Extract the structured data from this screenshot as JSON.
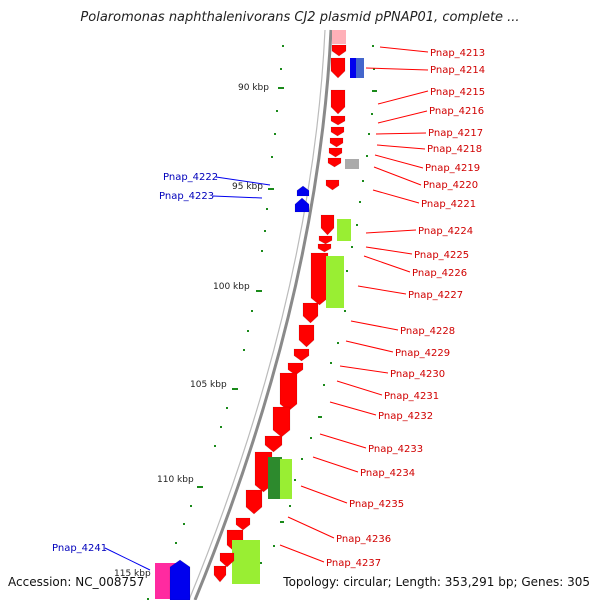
{
  "title": "Polaromonas naphthalenivorans CJ2 plasmid pPNAP01, complete ...",
  "footer": {
    "accession": "Accession: NC_008757",
    "summary": "Topology: circular; Length: 353,291 bp; Genes: 305"
  },
  "colors": {
    "backbone": "#8a8a8a",
    "tick": "#1a8a1a",
    "gene_red": "#ff0000",
    "gene_blue": "#0000ee",
    "gene_lime": "#99ee33",
    "gene_dkgreen": "#2d8a2d",
    "gene_magenta": "#ff2aa0",
    "gene_grey": "#aaaaaa",
    "gene_pink": "#ffb0b8",
    "label_red": "#d00000",
    "label_blue": "#0000bb"
  },
  "kbp_labels": [
    "90 kbp",
    "95 kbp",
    "100 kbp",
    "105 kbp",
    "110 kbp",
    "115 kbp"
  ],
  "right_labels": [
    "Pnap_4213",
    "Pnap_4214",
    "Pnap_4215",
    "Pnap_4216",
    "Pnap_4217",
    "Pnap_4218",
    "Pnap_4219",
    "Pnap_4220",
    "Pnap_4221",
    "Pnap_4224",
    "Pnap_4225",
    "Pnap_4226",
    "Pnap_4227",
    "Pnap_4228",
    "Pnap_4229",
    "Pnap_4230",
    "Pnap_4231",
    "Pnap_4232",
    "Pnap_4233",
    "Pnap_4234",
    "Pnap_4235",
    "Pnap_4236",
    "Pnap_4237"
  ],
  "left_labels": [
    "Pnap_4222",
    "Pnap_4223",
    "Pnap_4241"
  ]
}
